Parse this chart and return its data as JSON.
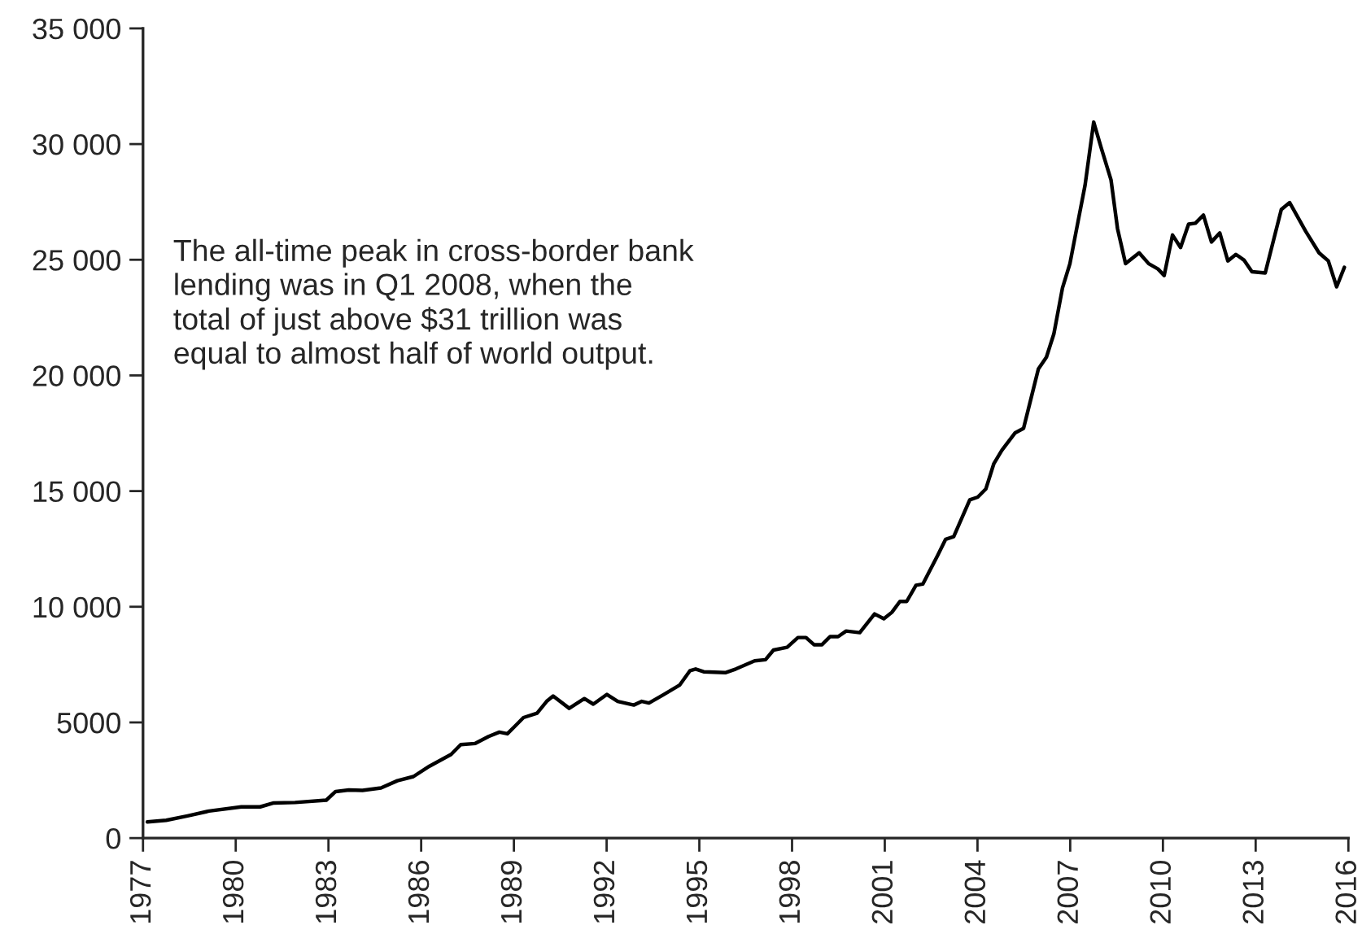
{
  "chart_data": {
    "type": "line",
    "annotations": [
      "The all-time peak in cross-border bank\nlending was in Q1 2008, when the\ntotal of just above $31 trillion was\nequal to almost half of world output."
    ],
    "x": [
      1977.14,
      1977.75,
      1978.44,
      1979.14,
      1980.18,
      1980.79,
      1981.23,
      1981.92,
      1982.93,
      1983.23,
      1983.66,
      1984.1,
      1984.7,
      1985.23,
      1985.75,
      1986.27,
      1986.97,
      1987.28,
      1987.75,
      1988.18,
      1988.53,
      1988.79,
      1989.05,
      1989.31,
      1989.75,
      1990.06,
      1990.27,
      1990.79,
      1991.28,
      1991.57,
      1992.01,
      1992.36,
      1992.88,
      1993.14,
      1993.37,
      1993.83,
      1994.36,
      1994.7,
      1994.88,
      1995.14,
      1995.84,
      1996.18,
      1996.79,
      1997.14,
      1997.4,
      1997.84,
      1998.19,
      1998.45,
      1998.71,
      1998.97,
      1999.23,
      1999.49,
      1999.75,
      2000.19,
      2000.67,
      2000.97,
      2001.23,
      2001.49,
      2001.71,
      2002.01,
      2002.23,
      2002.71,
      2002.97,
      2003.23,
      2003.75,
      2004.01,
      2004.27,
      2004.53,
      2004.79,
      2005.22,
      2005.49,
      2005.97,
      2006.23,
      2006.47,
      2006.75,
      2006.99,
      2007.26,
      2007.48,
      2007.76,
      2008.0,
      2008.32,
      2008.53,
      2008.79,
      2009.23,
      2009.54,
      2009.84,
      2010.04,
      2010.31,
      2010.57,
      2010.83,
      2011.05,
      2011.31,
      2011.57,
      2011.84,
      2012.1,
      2012.36,
      2012.62,
      2012.88,
      2013.31,
      2013.83,
      2014.1,
      2014.62,
      2015.05,
      2015.35,
      2015.62,
      2015.87
    ],
    "series": [
      {
        "color": "#000000",
        "values": [
          700,
          770,
          960,
          1170,
          1350,
          1350,
          1520,
          1540,
          1640,
          2010,
          2080,
          2060,
          2170,
          2480,
          2660,
          3110,
          3620,
          4040,
          4090,
          4390,
          4580,
          4510,
          4860,
          5210,
          5400,
          5910,
          6140,
          5610,
          6030,
          5790,
          6210,
          5910,
          5750,
          5910,
          5840,
          6190,
          6610,
          7240,
          7310,
          7190,
          7150,
          7310,
          7660,
          7710,
          8130,
          8250,
          8670,
          8670,
          8360,
          8360,
          8710,
          8710,
          8950,
          8880,
          9690,
          9480,
          9760,
          10230,
          10230,
          10930,
          10980,
          12220,
          12920,
          13030,
          14620,
          14740,
          15090,
          16190,
          16770,
          17520,
          17710,
          20280,
          20790,
          21790,
          23780,
          24830,
          26700,
          28220,
          30950,
          29850,
          28450,
          26350,
          24830,
          25300,
          24830,
          24600,
          24320,
          26070,
          25530,
          26540,
          26580,
          26930,
          25770,
          26160,
          24950,
          25230,
          24990,
          24480,
          24430,
          27170,
          27470,
          26230,
          25300,
          24950,
          23830,
          24670
        ]
      }
    ],
    "xlim": [
      1977,
      2016
    ],
    "xticks": [
      1977,
      1980,
      1983,
      1986,
      1989,
      1992,
      1995,
      1998,
      2001,
      2004,
      2007,
      2010,
      2013,
      2016
    ],
    "ylim": [
      0,
      35000
    ],
    "yticks": [
      0,
      5000,
      {
        "value": 10000,
        "label": "10 000"
      },
      {
        "value": 15000,
        "label": "15 000"
      },
      {
        "value": 20000,
        "label": "20 000"
      },
      {
        "value": 25000,
        "label": "25 000"
      },
      {
        "value": 30000,
        "label": "30 000"
      },
      {
        "value": 35000,
        "label": "35 000"
      }
    ],
    "grid": false,
    "marker": "none",
    "line_style": "solid"
  }
}
